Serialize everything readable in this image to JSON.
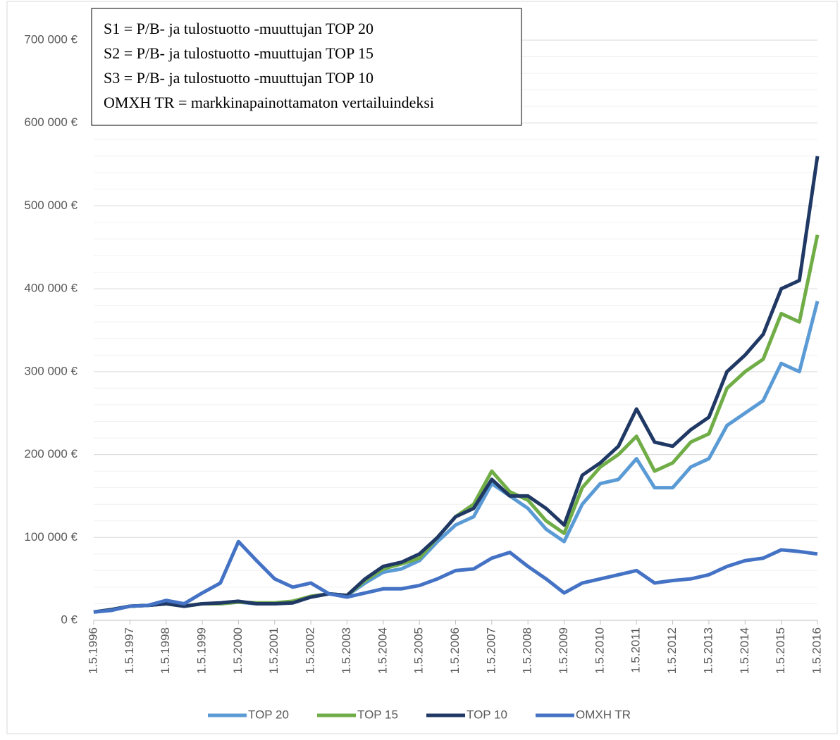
{
  "chart_data": {
    "type": "line",
    "annotation": [
      "S1 = P/B- ja tulostuotto -muuttujan TOP 20",
      "S2 = P/B- ja tulostuotto -muuttujan TOP 15",
      "S3 = P/B- ja tulostuotto -muuttujan TOP 10",
      "OMXH TR = markkinapainottamaton vertailuindeksi"
    ],
    "categories": [
      "1.5.1996",
      null,
      "1.5.1997",
      null,
      "1.5.1998",
      null,
      "1.5.1999",
      null,
      "1.5.2000",
      null,
      "1.5.2001",
      null,
      "1.5.2002",
      null,
      "1.5.2003",
      null,
      "1.5.2004",
      null,
      "1.5.2005",
      null,
      "1.5.2006",
      null,
      "1.5.2007",
      null,
      "1.5.2008",
      null,
      "1.5.2009",
      null,
      "1.5.2010",
      null,
      "1.5.2011",
      null,
      "1.5.2012",
      null,
      "1.5.2013",
      null,
      "1.5.2014",
      null,
      "1.5.2015",
      null,
      "1.5.2016"
    ],
    "series": [
      {
        "name": "TOP 20",
        "color": "#5b9bd5",
        "values": [
          10000,
          13000,
          17000,
          18000,
          20000,
          17000,
          20000,
          20000,
          22000,
          20000,
          20000,
          22000,
          28000,
          32000,
          30000,
          45000,
          58000,
          62000,
          72000,
          95000,
          115000,
          125000,
          165000,
          150000,
          135000,
          110000,
          95000,
          140000,
          165000,
          170000,
          195000,
          160000,
          160000,
          185000,
          195000,
          235000,
          250000,
          265000,
          310000,
          300000,
          385000
        ]
      },
      {
        "name": "TOP 15",
        "color": "#70ad47",
        "values": [
          10000,
          13000,
          17000,
          18000,
          20000,
          17000,
          20000,
          20000,
          22000,
          21000,
          21000,
          23000,
          29000,
          32000,
          30000,
          48000,
          62000,
          68000,
          75000,
          100000,
          125000,
          140000,
          180000,
          155000,
          145000,
          120000,
          105000,
          160000,
          185000,
          200000,
          222000,
          180000,
          190000,
          215000,
          225000,
          280000,
          300000,
          315000,
          370000,
          360000,
          465000
        ]
      },
      {
        "name": "TOP 10",
        "color": "#203864",
        "values": [
          10000,
          13000,
          17000,
          18000,
          20000,
          17000,
          20000,
          21000,
          23000,
          20000,
          20000,
          21000,
          28000,
          32000,
          30000,
          50000,
          65000,
          70000,
          80000,
          100000,
          125000,
          135000,
          170000,
          150000,
          150000,
          135000,
          115000,
          175000,
          190000,
          210000,
          255000,
          215000,
          210000,
          230000,
          245000,
          300000,
          320000,
          345000,
          400000,
          410000,
          560000
        ]
      },
      {
        "name": "OMXH TR",
        "color": "#4472c4",
        "values": [
          10000,
          12000,
          17000,
          18000,
          24000,
          20000,
          33000,
          45000,
          95000,
          72000,
          50000,
          40000,
          45000,
          32000,
          28000,
          33000,
          38000,
          38000,
          42000,
          50000,
          60000,
          62000,
          75000,
          82000,
          65000,
          50000,
          33000,
          45000,
          50000,
          55000,
          60000,
          45000,
          48000,
          50000,
          55000,
          65000,
          72000,
          75000,
          85000,
          83000,
          80000
        ]
      }
    ],
    "ylim": [
      0,
      700000
    ],
    "yticks": [
      {
        "value": 0,
        "label": "0 €"
      },
      {
        "value": 100000,
        "label": "100 000 €"
      },
      {
        "value": 200000,
        "label": "200 000 €"
      },
      {
        "value": 300000,
        "label": "300 000 €"
      },
      {
        "value": 400000,
        "label": "400 000 €"
      },
      {
        "value": 500000,
        "label": "500 000 €"
      },
      {
        "value": 600000,
        "label": "600 000 €"
      },
      {
        "value": 700000,
        "label": "700 000 €"
      }
    ],
    "minor_yticks": [
      20000,
      40000,
      60000,
      80000,
      120000,
      140000,
      160000,
      180000,
      220000,
      240000,
      260000,
      280000,
      320000,
      340000,
      360000,
      380000,
      420000,
      440000,
      460000,
      480000,
      520000,
      540000,
      560000,
      580000,
      620000,
      640000,
      660000,
      680000
    ],
    "grid": true,
    "legend": "bottom"
  }
}
